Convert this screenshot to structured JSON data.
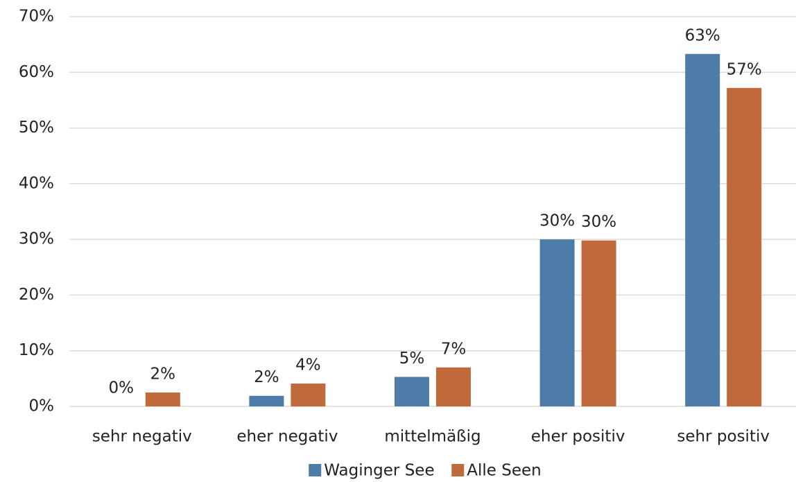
{
  "chart_data": {
    "type": "bar",
    "categories": [
      "sehr negativ",
      "eher negativ",
      "mittelmäßig",
      "eher positiv",
      "sehr positiv"
    ],
    "series": [
      {
        "name": "Waginger See",
        "color": "#4e7ca8",
        "values": [
          0,
          1.9,
          5.3,
          30,
          63.3
        ],
        "value_labels": [
          "0%",
          "2%",
          "5%",
          "30%",
          "63%"
        ]
      },
      {
        "name": "Alle Seen",
        "color": "#c0693a",
        "values": [
          2.5,
          4.1,
          7,
          29.8,
          57.2
        ],
        "value_labels": [
          "2%",
          "4%",
          "7%",
          "30%",
          "57%"
        ]
      }
    ],
    "ylim": [
      0,
      70
    ],
    "yticks": [
      {
        "value": 0,
        "label": "0%"
      },
      {
        "value": 10,
        "label": "10%"
      },
      {
        "value": 20,
        "label": "20%"
      },
      {
        "value": 30,
        "label": "30%"
      },
      {
        "value": 40,
        "label": "40%"
      },
      {
        "value": 50,
        "label": "50%"
      },
      {
        "value": 60,
        "label": "60%"
      },
      {
        "value": 70,
        "label": "70%"
      }
    ],
    "grid": true,
    "legend": "bottom"
  }
}
